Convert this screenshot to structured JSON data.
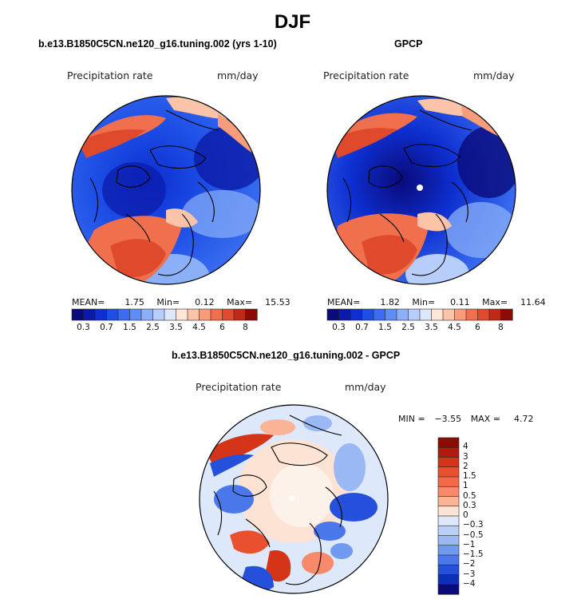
{
  "season": "DJF",
  "panels": [
    {
      "id": "model",
      "title": "b.e13.B1850C5CN.ne120_g16.tuning.002 (yrs 1-10)",
      "variable": "Precipitation rate",
      "units": "mm/day",
      "stats": {
        "mean_label": "MEAN=",
        "mean": "1.75",
        "min_label": "Min=",
        "min": "0.12",
        "max_label": "Max=",
        "max": "15.53"
      }
    },
    {
      "id": "obs",
      "title": "GPCP",
      "variable": "Precipitation rate",
      "units": "mm/day",
      "stats": {
        "mean_label": "MEAN=",
        "mean": "1.82",
        "min_label": "Min=",
        "min": "0.11",
        "max_label": "Max=",
        "max": "11.64"
      }
    },
    {
      "id": "diff",
      "title": "b.e13.B1850C5CN.ne120_g16.tuning.002 - GPCP",
      "variable": "Precipitation rate",
      "units": "mm/day",
      "stats": {
        "min_label": "MIN =",
        "min": "−3.55",
        "max_label": "MAX =",
        "max": "4.72"
      }
    }
  ],
  "abs_colorbar": {
    "labels": [
      "0.3",
      "0.7",
      "1.5",
      "2.5",
      "3.5",
      "4.5",
      "6",
      "8"
    ],
    "colors": [
      "#0a0a7a",
      "#0b1aa8",
      "#0d2fd0",
      "#1d4fe6",
      "#3a6df0",
      "#5e8ef5",
      "#8ab0f8",
      "#b7cdfa",
      "#dde8fb",
      "#fde6d8",
      "#fbc3a7",
      "#f79d7a",
      "#f0704e",
      "#e04a2c",
      "#c02a14",
      "#8a0c04"
    ]
  },
  "diff_colorbar": {
    "labels": [
      "4",
      "3",
      "2",
      "1.5",
      "1",
      "0.5",
      "0.3",
      "0",
      "−0.3",
      "−0.5",
      "−1",
      "−1.5",
      "−2",
      "−3",
      "−4"
    ],
    "colors": [
      "#8a0c04",
      "#b01c0c",
      "#d43418",
      "#e8502e",
      "#f26a48",
      "#f78a6a",
      "#fbb395",
      "#fde3d3",
      "#dde8fb",
      "#bcd0f7",
      "#9ab8f4",
      "#7099f0",
      "#4a78ea",
      "#2450dc",
      "#0e2fb8",
      "#0a0a7a"
    ]
  }
}
